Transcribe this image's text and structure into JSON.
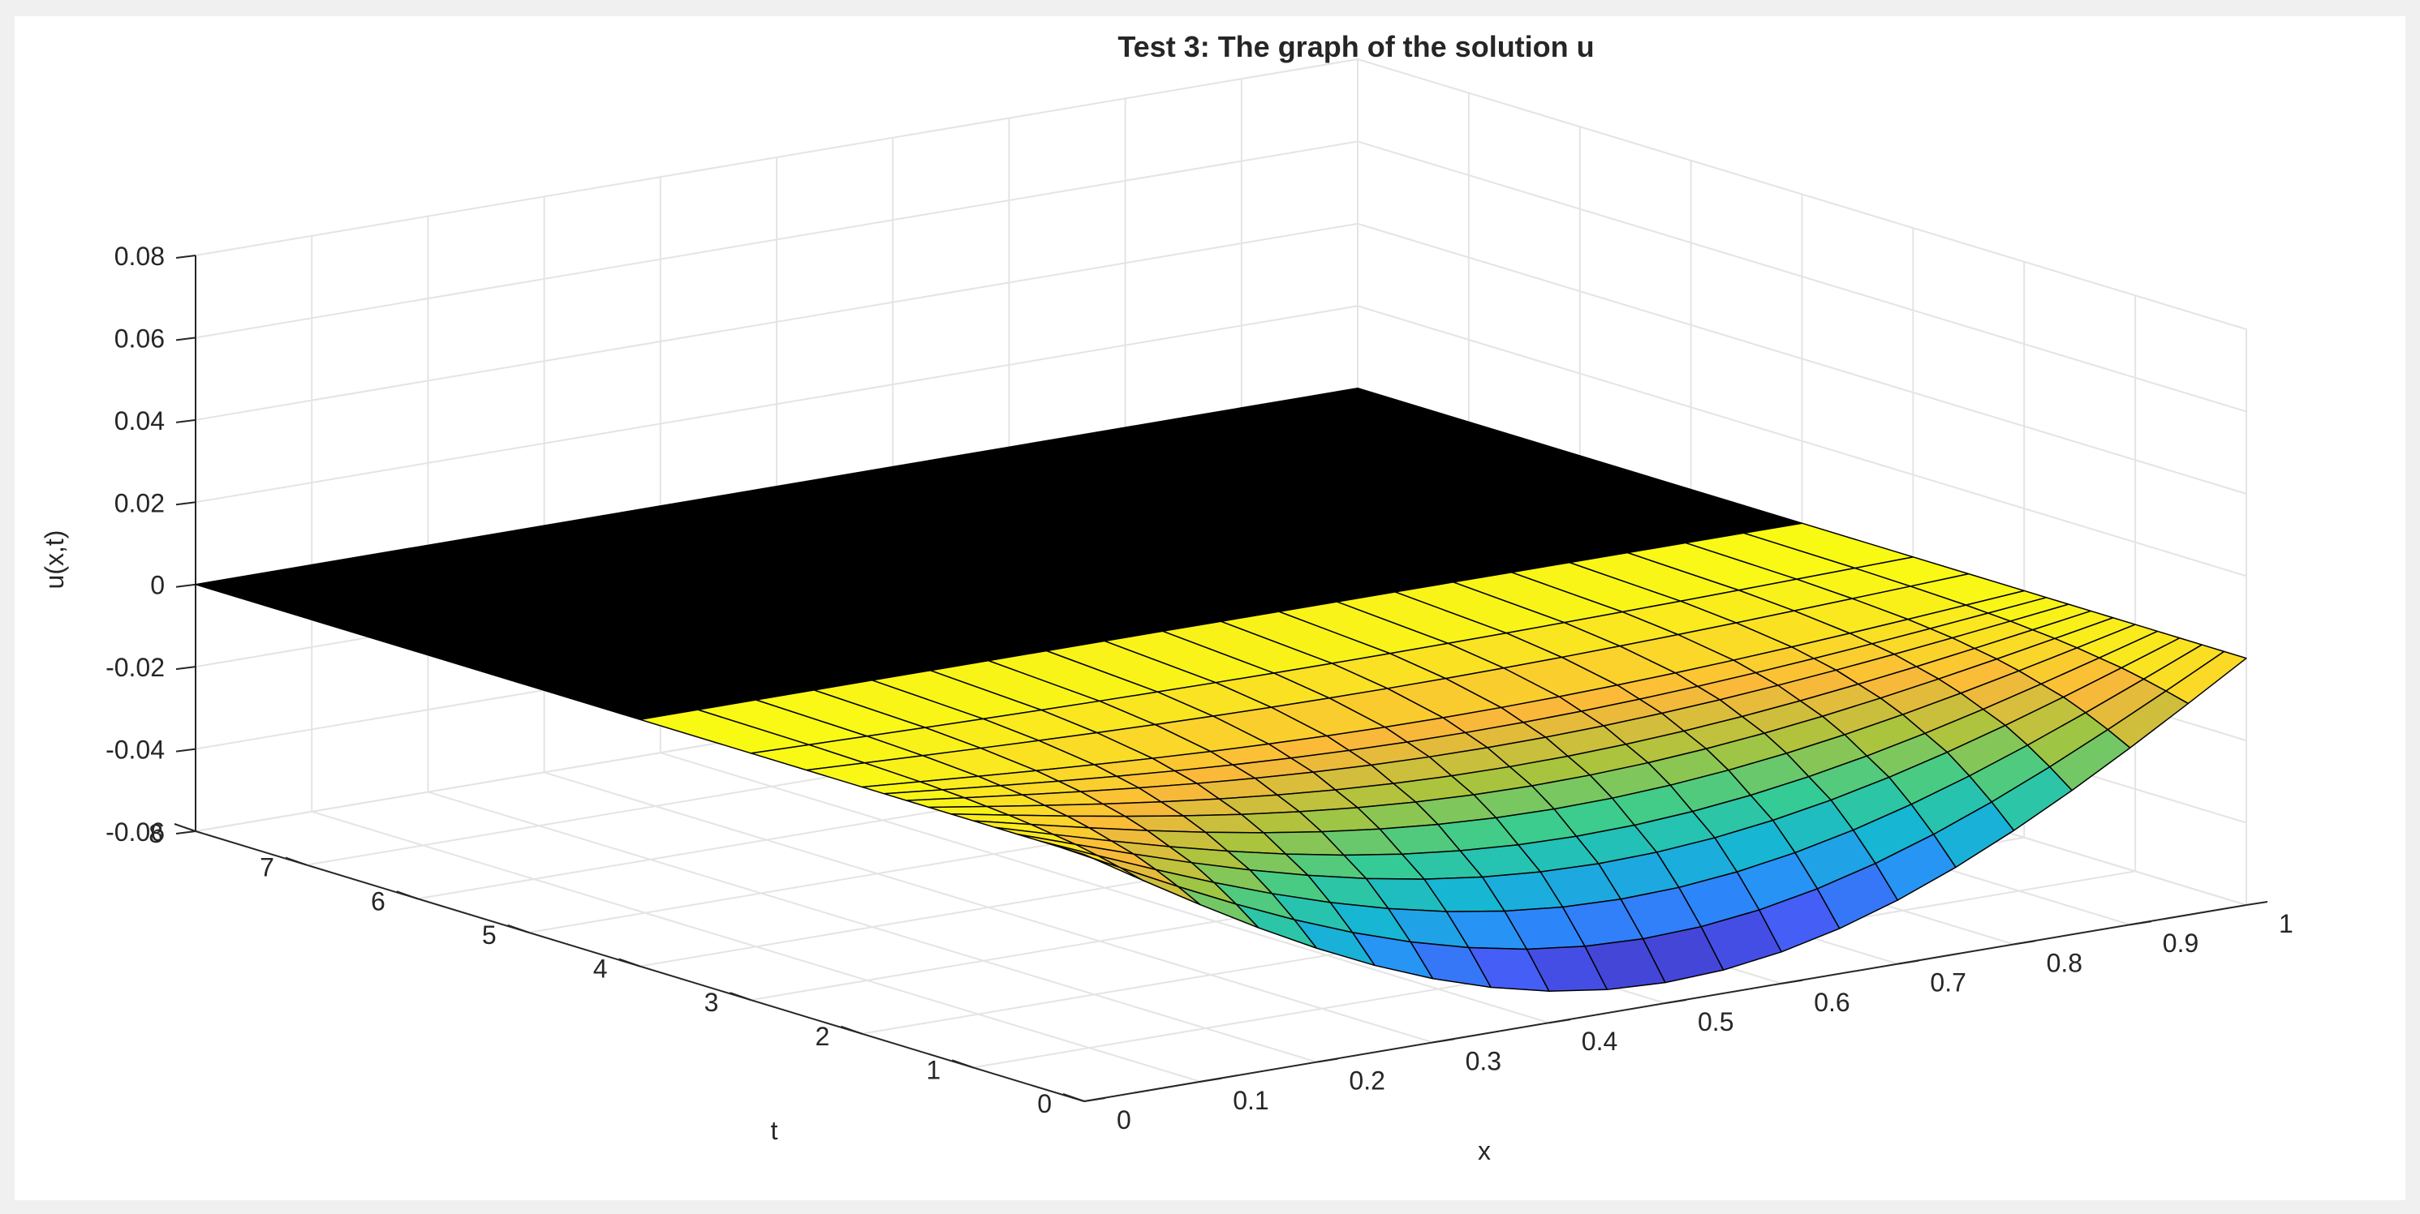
{
  "chart_data": {
    "type": "surface",
    "title": "Test 3: The graph of the solution u",
    "xlabel": "x",
    "ylabel": "t",
    "zlabel": "u(x,t)",
    "xlim": [
      0,
      1
    ],
    "ylim": [
      0,
      8
    ],
    "zlim": [
      -0.06,
      0.08
    ],
    "x_ticks": [
      "0",
      "0.1",
      "0.2",
      "0.3",
      "0.4",
      "0.5",
      "0.6",
      "0.7",
      "0.8",
      "0.9",
      "1"
    ],
    "y_ticks": [
      "0",
      "1",
      "2",
      "3",
      "4",
      "5",
      "6",
      "7",
      "8"
    ],
    "z_ticks": [
      "-0.06",
      "-0.04",
      "-0.02",
      "0",
      "0.02",
      "0.04",
      "0.06",
      "0.08"
    ],
    "grid": true,
    "colormap": "parula",
    "surface": {
      "description": "u(x,t) = A(t)·sin(pi·x); A(t) = -0.055 at t = 0, decaying to 0 by t ≈ 2",
      "amplitude_at_t0": -0.055,
      "x": [
        0,
        0.05,
        0.1,
        0.15,
        0.2,
        0.25,
        0.3,
        0.35,
        0.4,
        0.45,
        0.5,
        0.55,
        0.6,
        0.65,
        0.7,
        0.75,
        0.8,
        0.85,
        0.9,
        0.95,
        1
      ],
      "t": [
        0,
        0.2,
        0.4,
        0.6,
        0.8,
        1.0,
        1.2,
        1.4,
        1.6,
        1.8,
        2.0,
        2.5,
        3,
        4,
        5,
        6,
        7,
        8
      ],
      "amplitude": [
        -0.055,
        -0.046,
        -0.038,
        -0.031,
        -0.026,
        -0.021,
        -0.017,
        -0.014,
        -0.011,
        -0.009,
        -0.007,
        -0.004,
        -0.002,
        0,
        0,
        0,
        0,
        0
      ]
    }
  }
}
